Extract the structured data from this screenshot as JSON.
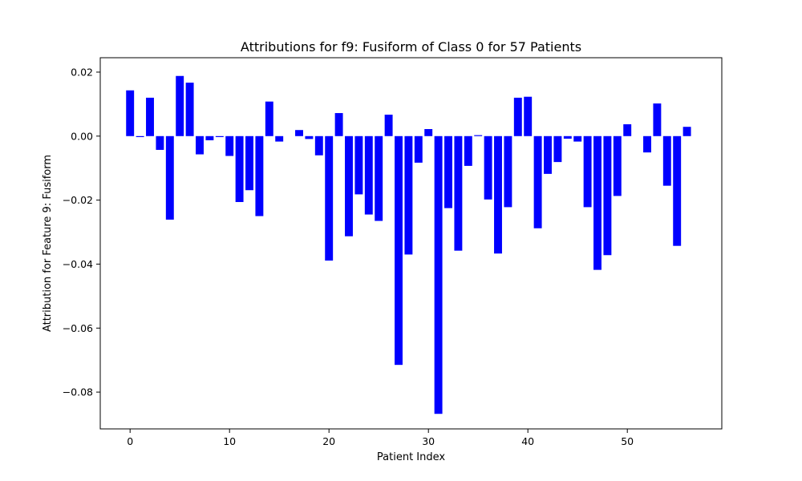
{
  "chart_data": {
    "type": "bar",
    "title": "Attributions for f9: Fusiform of Class 0 for 57 Patients",
    "xlabel": "Patient Index",
    "ylabel": "Attribution for Feature 9: Fusiform",
    "color": "#0000ff",
    "xlim": [
      -3,
      59.5
    ],
    "ylim": [
      -0.0915,
      0.0245
    ],
    "x_ticks": [
      0,
      10,
      20,
      30,
      40,
      50
    ],
    "x_tick_labels": [
      "0",
      "10",
      "20",
      "30",
      "40",
      "50"
    ],
    "y_ticks": [
      0.02,
      0.0,
      -0.02,
      -0.04,
      -0.06,
      -0.08
    ],
    "y_tick_labels": [
      "0.02",
      "0.00",
      "−0.02",
      "−0.04",
      "−0.06",
      "−0.08"
    ],
    "grid": false,
    "legend": "none",
    "x": [
      0,
      1,
      2,
      3,
      4,
      5,
      6,
      7,
      8,
      9,
      10,
      11,
      12,
      13,
      14,
      15,
      16,
      17,
      18,
      19,
      20,
      21,
      22,
      23,
      24,
      25,
      26,
      27,
      28,
      29,
      30,
      31,
      32,
      33,
      34,
      35,
      36,
      37,
      38,
      39,
      40,
      41,
      42,
      43,
      44,
      45,
      46,
      47,
      48,
      49,
      50,
      51,
      52,
      53,
      54,
      55,
      56
    ],
    "values": [
      0.0143,
      -0.0003,
      0.012,
      -0.0043,
      -0.0261,
      0.0188,
      0.0167,
      -0.0057,
      -0.0013,
      -0.0003,
      -0.0062,
      -0.0206,
      -0.0169,
      -0.025,
      0.0108,
      -0.0017,
      0.0,
      0.0019,
      -0.0009,
      -0.006,
      -0.0389,
      0.0072,
      -0.0313,
      -0.0182,
      -0.0245,
      -0.0265,
      0.0067,
      -0.0715,
      -0.037,
      -0.0083,
      0.0022,
      -0.0868,
      -0.0225,
      -0.0358,
      -0.0093,
      0.0003,
      -0.0198,
      -0.0367,
      -0.0222,
      0.012,
      0.0123,
      -0.0288,
      -0.0118,
      -0.0081,
      -0.0008,
      -0.0017,
      -0.0222,
      -0.0418,
      -0.0372,
      -0.0187,
      0.0037,
      0.0,
      -0.0051,
      0.0102,
      -0.0155,
      -0.0343,
      0.0029
    ]
  }
}
